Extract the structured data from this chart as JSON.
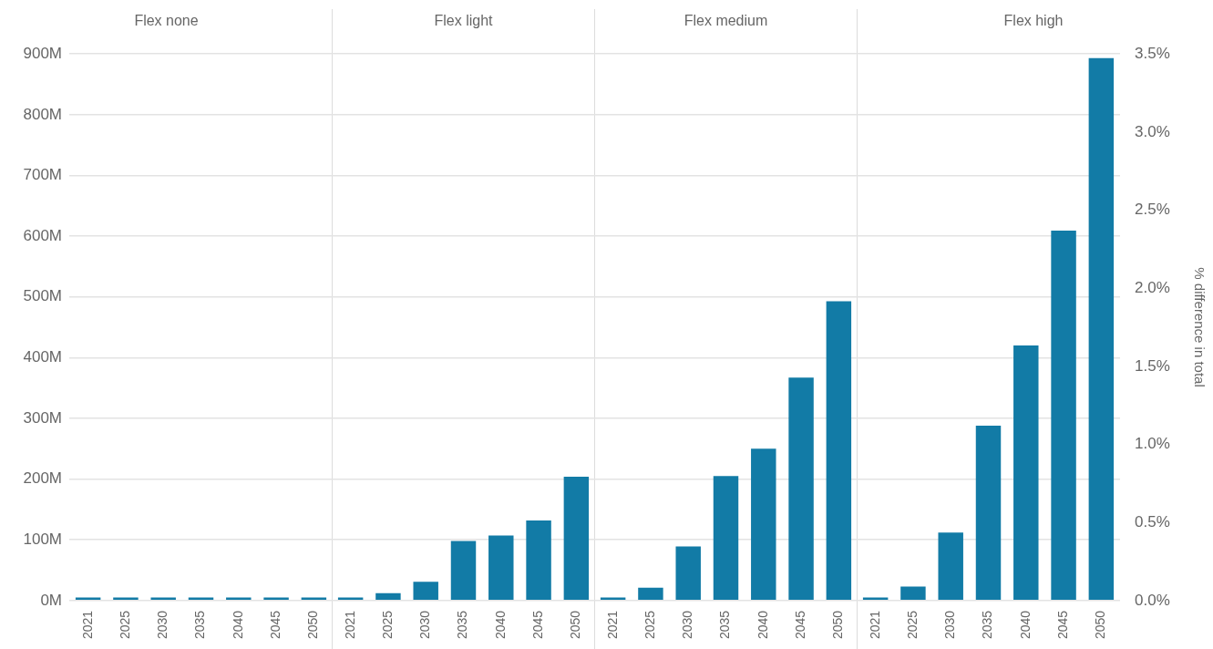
{
  "chart_data": [
    {
      "type": "bar",
      "title": "Flex none",
      "categories": [
        "2021",
        "2025",
        "2030",
        "2035",
        "2040",
        "2045",
        "2050"
      ],
      "values": [
        5,
        5,
        5,
        5,
        5,
        5,
        5
      ],
      "color": "#127ba6",
      "ylim": [
        0,
        900
      ],
      "yticks": [
        {
          "value": 0,
          "label": "0M"
        },
        {
          "value": 100,
          "label": "100M"
        },
        {
          "value": 200,
          "label": "200M"
        },
        {
          "value": 300,
          "label": "300M"
        },
        {
          "value": 400,
          "label": "400M"
        },
        {
          "value": 500,
          "label": "500M"
        },
        {
          "value": 600,
          "label": "600M"
        },
        {
          "value": 700,
          "label": "700M"
        },
        {
          "value": 800,
          "label": "800M"
        },
        {
          "value": 900,
          "label": "900M"
        }
      ],
      "grid": "y",
      "legend": false
    },
    {
      "type": "bar",
      "title": "Flex light",
      "categories": [
        "2021",
        "2025",
        "2030",
        "2035",
        "2040",
        "2045",
        "2050"
      ],
      "values": [
        5,
        12,
        31,
        98,
        107,
        132,
        204
      ],
      "color": "#127ba6",
      "ylim": [
        0,
        900
      ],
      "yticks": [
        {
          "value": 0,
          "label": null
        },
        {
          "value": 100,
          "label": null
        },
        {
          "value": 200,
          "label": null
        },
        {
          "value": 300,
          "label": null
        },
        {
          "value": 400,
          "label": null
        },
        {
          "value": 500,
          "label": null
        },
        {
          "value": 600,
          "label": null
        },
        {
          "value": 700,
          "label": null
        },
        {
          "value": 800,
          "label": null
        },
        {
          "value": 900,
          "label": null
        }
      ],
      "grid": "y",
      "legend": false,
      "tick_labels": "x"
    },
    {
      "type": "bar",
      "title": "Flex medium",
      "categories": [
        "2021",
        "2025",
        "2030",
        "2035",
        "2040",
        "2045",
        "2050"
      ],
      "values": [
        5,
        21,
        89,
        205,
        250,
        367,
        493
      ],
      "color": "#127ba6",
      "ylim": [
        0,
        900
      ],
      "yticks": [
        {
          "value": 0,
          "label": null
        },
        {
          "value": 100,
          "label": null
        },
        {
          "value": 200,
          "label": null
        },
        {
          "value": 300,
          "label": null
        },
        {
          "value": 400,
          "label": null
        },
        {
          "value": 500,
          "label": null
        },
        {
          "value": 600,
          "label": null
        },
        {
          "value": 700,
          "label": null
        },
        {
          "value": 800,
          "label": null
        },
        {
          "value": 900,
          "label": null
        }
      ],
      "grid": "y",
      "legend": false,
      "tick_labels": "x"
    },
    {
      "type": "bar",
      "title": "Flex high",
      "categories": [
        "2021",
        "2025",
        "2030",
        "2035",
        "2040",
        "2045",
        "2050"
      ],
      "values": [
        5,
        23,
        112,
        288,
        420,
        609,
        893
      ],
      "color": "#127ba6",
      "ylim": [
        0,
        900
      ],
      "yticks": [
        {
          "value": 0,
          "label": null
        },
        {
          "value": 100,
          "label": null
        },
        {
          "value": 200,
          "label": null
        },
        {
          "value": 300,
          "label": null
        },
        {
          "value": 400,
          "label": null
        },
        {
          "value": 500,
          "label": null
        },
        {
          "value": 600,
          "label": null
        },
        {
          "value": 700,
          "label": null
        },
        {
          "value": 800,
          "label": null
        },
        {
          "value": 900,
          "label": null
        }
      ],
      "grid": "y",
      "legend": false,
      "tick_labels": "x",
      "y2label": "% difference in total",
      "y2lim": [
        0,
        3.5
      ],
      "y2ticks": [
        {
          "value": 0,
          "label": "0.0%"
        },
        {
          "value": 0.5,
          "label": "0.5%"
        },
        {
          "value": 1,
          "label": "1.0%"
        },
        {
          "value": 1.5,
          "label": "1.5%"
        },
        {
          "value": 2,
          "label": "2.0%"
        },
        {
          "value": 2.5,
          "label": "2.5%"
        },
        {
          "value": 3,
          "label": "3.0%"
        },
        {
          "value": 3.5,
          "label": "3.5%"
        }
      ]
    }
  ]
}
